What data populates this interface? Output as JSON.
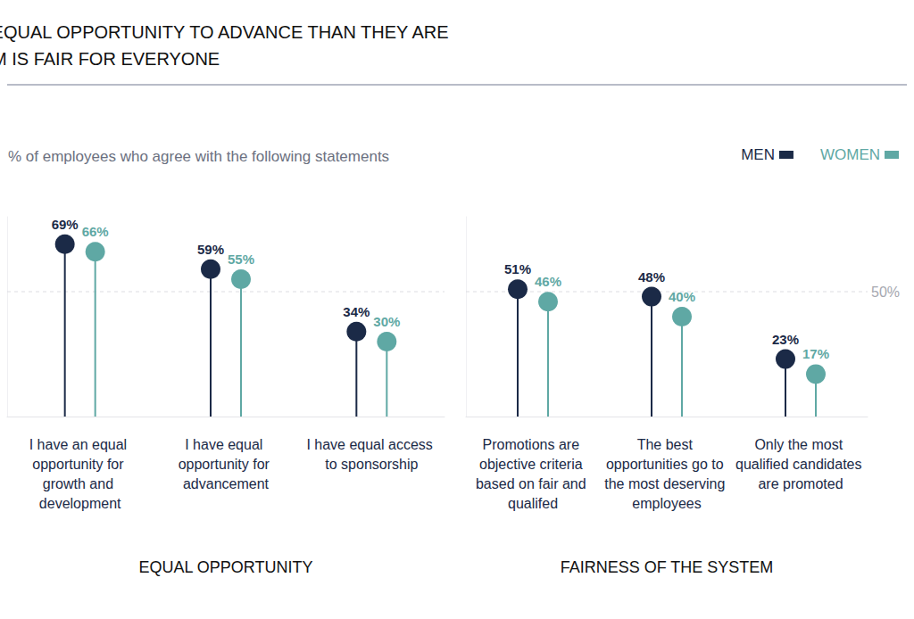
{
  "chart_data": [
    {
      "type": "lollipop",
      "title": "EMPLOYEES ARE MORE LIKELY TO THINK THEY HAVE EQUAL OPPORTUNITY TO ADVANCE THAN THEY ARE TO THINK THAT THE SYSTEM IS FAIR FOR EVERYONE",
      "subtitle": "% of employees who agree with the following statements",
      "x_label": "EQUAL OPPORTUNITY",
      "categories": [
        "I have an equal opportunity for growth and development",
        "I have equal opportunity for advancement",
        "I have equal access to sponsorship"
      ],
      "series": [
        {
          "name": "MEN",
          "color": "#1b2a47",
          "values": [
            69,
            59,
            34
          ],
          "value_labels": [
            "69%",
            "59%",
            "34%"
          ]
        },
        {
          "name": "WOMEN",
          "color": "#5fa8a4",
          "values": [
            66,
            55,
            30
          ],
          "value_labels": [
            "66%",
            "55%",
            "30%"
          ]
        }
      ],
      "ylim": [
        0,
        80
      ],
      "yticks": [
        0,
        20,
        40,
        60,
        80
      ],
      "grid": false,
      "data_labels": true,
      "tick_labels": "x"
    },
    {
      "type": "lollipop",
      "x_label": "FAIRNESS OF THE SYSTEM",
      "categories": [
        "Promotions are objective criteria based on fair and qualifed",
        "The best opportunities go to the most deserving employees",
        "Only the most qualified candidates are promoted"
      ],
      "series": [
        {
          "name": "MEN",
          "color": "#1b2a47",
          "values": [
            51,
            48,
            23
          ],
          "value_labels": [
            "51%",
            "48%",
            "23%"
          ]
        },
        {
          "name": "WOMEN",
          "color": "#5fa8a4",
          "values": [
            46,
            40,
            17
          ],
          "value_labels": [
            "46%",
            "40%",
            "17%"
          ]
        }
      ],
      "annotations": [
        {
          "text": "50%",
          "y": 50
        }
      ],
      "ylim": [
        0,
        80
      ],
      "yticks": [
        0,
        20,
        40,
        60,
        80
      ],
      "grid": false,
      "data_labels": true,
      "tick_labels": "x",
      "legend": "top-right"
    }
  ]
}
